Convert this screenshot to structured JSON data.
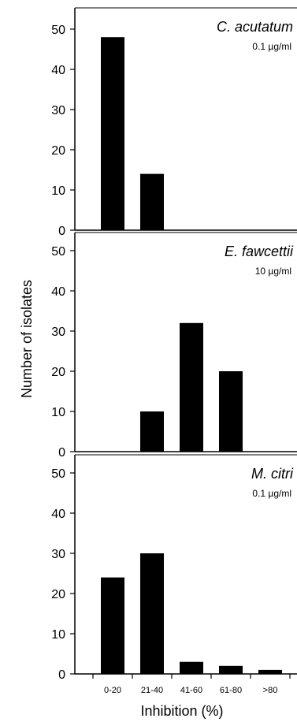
{
  "chart_data": {
    "type": "bar",
    "categories": [
      "0-20",
      "21-40",
      "41-60",
      "61-80",
      ">80"
    ],
    "xlabel": "Inhibition (%)",
    "ylabel": "Number of isolates",
    "ylim": [
      0,
      55
    ],
    "yticks": [
      0,
      10,
      20,
      30,
      40,
      50
    ],
    "bar_color": "#000000",
    "panels": [
      {
        "title": "C. acutatum",
        "concentration": "0.1 µg/ml",
        "values": [
          48,
          14,
          0,
          0,
          0
        ]
      },
      {
        "title": "E. fawcettii",
        "concentration": "10 µg/ml",
        "values": [
          0,
          10,
          32,
          20,
          0
        ]
      },
      {
        "title": "M. citri",
        "concentration": "0.1 µg/ml",
        "values": [
          24,
          30,
          3,
          2,
          1
        ]
      }
    ]
  }
}
